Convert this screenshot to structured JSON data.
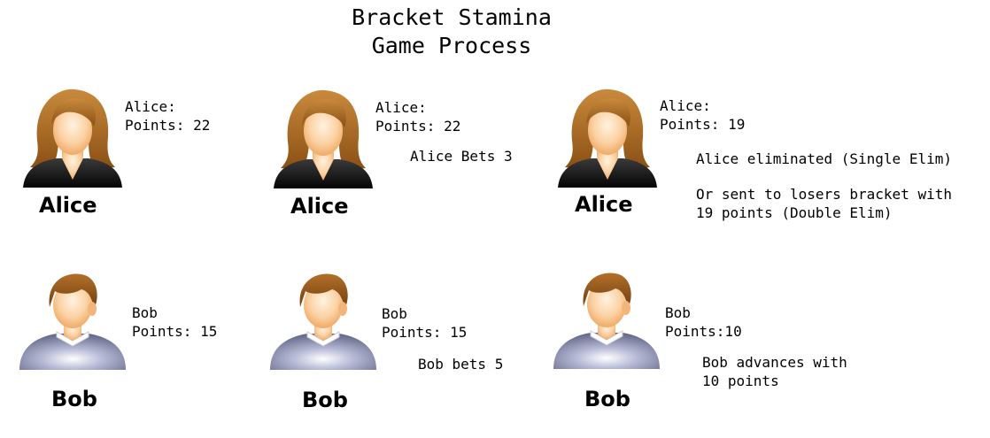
{
  "title": {
    "line1": "Bracket Stamina",
    "line2": "Game Process"
  },
  "alice": {
    "name": "Alice",
    "stage1": {
      "line1": "Alice:",
      "line2": "Points: 22"
    },
    "stage2": {
      "line1": "Alice:",
      "line2": "Points: 22",
      "bet": "Alice Bets 3"
    },
    "stage3": {
      "line1": "Alice:",
      "line2": "Points: 19",
      "result1": "Alice eliminated (Single Elim)",
      "result2": "Or sent to losers bracket with",
      "result3": "19 points (Double Elim)"
    }
  },
  "bob": {
    "name": "Bob",
    "stage1": {
      "line1": "Bob",
      "line2": "Points: 15"
    },
    "stage2": {
      "line1": "Bob",
      "line2": "Points: 15",
      "bet": "Bob bets 5"
    },
    "stage3": {
      "line1": "Bob",
      "line2": "Points:10",
      "result1": "Bob advances with",
      "result2": "10 points"
    }
  },
  "icons": {
    "female": "female-user-icon",
    "male": "male-user-icon"
  }
}
